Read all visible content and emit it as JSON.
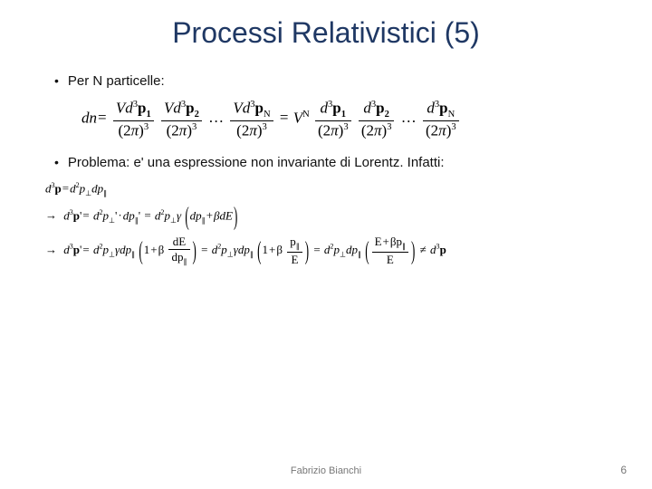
{
  "title": "Processi Relativistici (5)",
  "colors": {
    "title": "#1f3864",
    "text": "#111111",
    "footer": "#777777",
    "background": "#ffffff",
    "rule": "#000000"
  },
  "typography": {
    "title_font": "Comic Sans MS",
    "title_size_pt": 28,
    "body_font": "Verdana",
    "body_size_pt": 13,
    "math_font": "Times New Roman"
  },
  "bullets": [
    "Per N particelle:",
    "Problema: e' una espressione non invariante di Lorentz. Infatti:"
  ],
  "equations": {
    "eq1": {
      "lhs": "dn",
      "terms": [
        {
          "num": "Vd³p₁",
          "den": "(2π)³"
        },
        {
          "num": "Vd³p₂",
          "den": "(2π)³"
        },
        {
          "ellipsis": true
        },
        {
          "num": "Vd³p_N",
          "den": "(2π)³"
        }
      ],
      "factor": "Vᴺ",
      "terms2": [
        {
          "num": "d³p₁",
          "den": "(2π)³"
        },
        {
          "num": "d³p₂",
          "den": "(2π)³"
        },
        {
          "ellipsis": true
        },
        {
          "num": "d³p_N",
          "den": "(2π)³"
        }
      ]
    },
    "eq2": "d³p = d²p_⊥ dp_∥",
    "eq3": "→ d³p' = d²p_⊥' · dp_∥' = d²p_⊥ γ (dp_∥ + β dE)",
    "eq4": {
      "lead": "→ d³p' = d²p_⊥ γ dp_∥",
      "paren1": {
        "inner_lhs": "1 + β",
        "frac": {
          "num": "dE",
          "den": "dp_∥"
        }
      },
      "mid": "= d²p_⊥ γ dp_∥",
      "paren2": {
        "inner_lhs": "1 + β",
        "frac": {
          "num": "p_∥",
          "den": "E"
        }
      },
      "mid2": "= d²p_⊥ dp_∥",
      "paren3": {
        "frac": {
          "num": "E + β p_∥",
          "den": "E"
        }
      },
      "tail": "≠ d³p"
    }
  },
  "footer": {
    "author": "Fabrizio Bianchi",
    "page": "6"
  }
}
